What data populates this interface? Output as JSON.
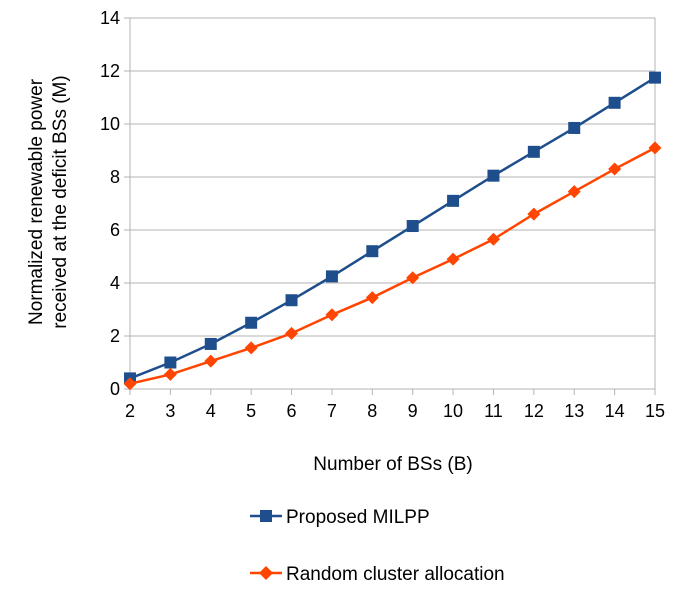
{
  "chart_data": {
    "type": "line",
    "title": "",
    "xlabel": "Number of BSs (B)",
    "ylabel_line1": "Normalized renewable power",
    "ylabel_line2": "received at the deficit BSs (M)",
    "x": [
      2,
      3,
      4,
      5,
      6,
      7,
      8,
      9,
      10,
      11,
      12,
      13,
      14,
      15
    ],
    "xlim": [
      2,
      15
    ],
    "ylim": [
      0,
      14
    ],
    "yticks": [
      0,
      2,
      4,
      6,
      8,
      10,
      12,
      14
    ],
    "grid": "horizontal",
    "legend_position": "bottom",
    "series": [
      {
        "name": "Proposed MILPP",
        "color": "#1f4e8c",
        "marker": "square",
        "values": [
          0.4,
          1.0,
          1.7,
          2.5,
          3.35,
          4.25,
          5.2,
          6.15,
          7.1,
          8.05,
          8.95,
          9.85,
          10.8,
          11.75
        ]
      },
      {
        "name": "Random cluster allocation",
        "color": "#ff4500",
        "marker": "diamond",
        "values": [
          0.2,
          0.55,
          1.05,
          1.55,
          2.1,
          2.8,
          3.45,
          4.2,
          4.9,
          5.65,
          6.6,
          7.45,
          8.3,
          9.1
        ]
      }
    ]
  }
}
